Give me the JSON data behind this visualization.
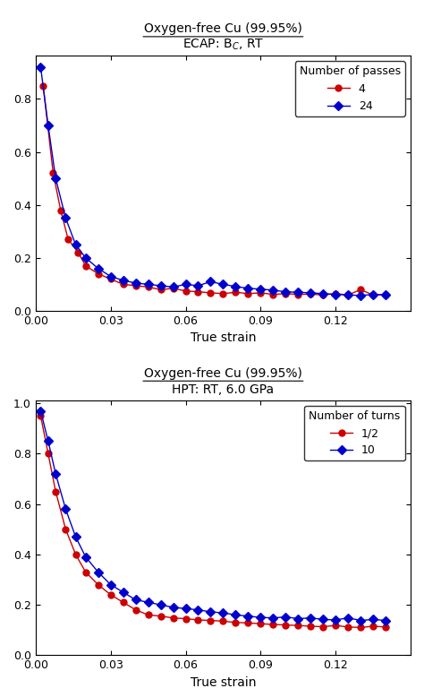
{
  "title1": "Oxygen-free Cu (99.95%)",
  "subtitle1": "ECAP: B$_C$, RT",
  "title2": "Oxygen-free Cu (99.95%)",
  "subtitle2": "HPT: RT, 6.0 GPa",
  "xlabel": "True strain",
  "legend1_title": "Number of passes",
  "legend2_title": "Number of turns",
  "legend1_entries": [
    "4",
    "24"
  ],
  "legend2_entries": [
    "1/2",
    "10"
  ],
  "color_red": "#cc0000",
  "color_blue": "#0000cc",
  "bg_color": "#ffffff",
  "ecap_4_x": [
    0.003,
    0.007,
    0.01,
    0.013,
    0.017,
    0.02,
    0.025,
    0.03,
    0.035,
    0.04,
    0.045,
    0.05,
    0.055,
    0.06,
    0.065,
    0.07,
    0.075,
    0.08,
    0.085,
    0.09,
    0.095,
    0.1,
    0.105,
    0.11,
    0.115,
    0.12,
    0.125,
    0.13,
    0.135,
    0.14
  ],
  "ecap_4_y": [
    0.85,
    0.52,
    0.38,
    0.27,
    0.22,
    0.17,
    0.14,
    0.12,
    0.1,
    0.095,
    0.09,
    0.08,
    0.085,
    0.075,
    0.072,
    0.068,
    0.065,
    0.07,
    0.065,
    0.068,
    0.062,
    0.065,
    0.062,
    0.063,
    0.06,
    0.065,
    0.06,
    0.08,
    0.06,
    0.062
  ],
  "ecap_24_x": [
    0.002,
    0.005,
    0.008,
    0.012,
    0.016,
    0.02,
    0.025,
    0.03,
    0.035,
    0.04,
    0.045,
    0.05,
    0.055,
    0.06,
    0.065,
    0.07,
    0.075,
    0.08,
    0.085,
    0.09,
    0.095,
    0.1,
    0.105,
    0.11,
    0.115,
    0.12,
    0.125,
    0.13,
    0.135,
    0.14
  ],
  "ecap_24_y": [
    0.92,
    0.7,
    0.5,
    0.35,
    0.25,
    0.2,
    0.16,
    0.13,
    0.115,
    0.105,
    0.1,
    0.095,
    0.09,
    0.1,
    0.095,
    0.11,
    0.1,
    0.092,
    0.085,
    0.082,
    0.078,
    0.072,
    0.07,
    0.068,
    0.065,
    0.062,
    0.06,
    0.058,
    0.062,
    0.06
  ],
  "hpt_half_x": [
    0.002,
    0.005,
    0.008,
    0.012,
    0.016,
    0.02,
    0.025,
    0.03,
    0.035,
    0.04,
    0.045,
    0.05,
    0.055,
    0.06,
    0.065,
    0.07,
    0.075,
    0.08,
    0.085,
    0.09,
    0.095,
    0.1,
    0.105,
    0.11,
    0.115,
    0.12,
    0.125,
    0.13,
    0.135,
    0.14
  ],
  "hpt_half_y": [
    0.95,
    0.8,
    0.65,
    0.5,
    0.4,
    0.33,
    0.28,
    0.24,
    0.21,
    0.18,
    0.16,
    0.155,
    0.148,
    0.145,
    0.14,
    0.138,
    0.135,
    0.13,
    0.128,
    0.125,
    0.122,
    0.12,
    0.118,
    0.115,
    0.113,
    0.118,
    0.112,
    0.11,
    0.115,
    0.112
  ],
  "hpt_10_x": [
    0.002,
    0.005,
    0.008,
    0.012,
    0.016,
    0.02,
    0.025,
    0.03,
    0.035,
    0.04,
    0.045,
    0.05,
    0.055,
    0.06,
    0.065,
    0.07,
    0.075,
    0.08,
    0.085,
    0.09,
    0.095,
    0.1,
    0.105,
    0.11,
    0.115,
    0.12,
    0.125,
    0.13,
    0.135,
    0.14
  ],
  "hpt_10_y": [
    0.97,
    0.85,
    0.72,
    0.58,
    0.47,
    0.39,
    0.33,
    0.28,
    0.25,
    0.22,
    0.21,
    0.2,
    0.19,
    0.185,
    0.18,
    0.172,
    0.168,
    0.16,
    0.155,
    0.15,
    0.148,
    0.152,
    0.145,
    0.148,
    0.142,
    0.14,
    0.148,
    0.138,
    0.142,
    0.138
  ],
  "xlim": [
    0.0,
    0.15
  ],
  "xticks": [
    0.0,
    0.03,
    0.06,
    0.09,
    0.12
  ],
  "xticklabels": [
    "0.00",
    "0.03",
    "0.06",
    "0.09",
    "0.12"
  ]
}
